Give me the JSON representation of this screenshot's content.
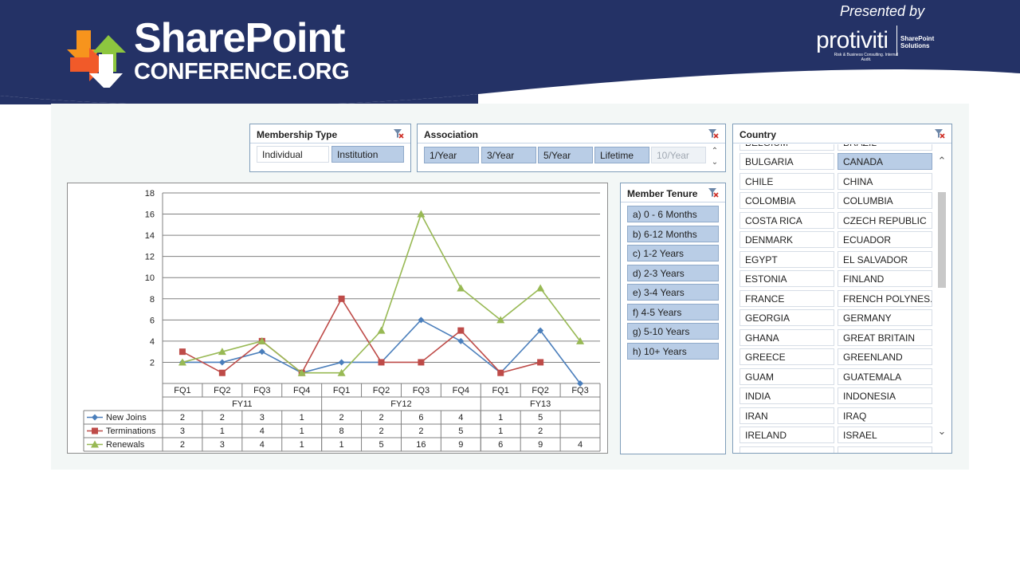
{
  "brand": {
    "line1": "SharePoint",
    "line2": "CONFERENCE.ORG",
    "presented_by": "Presented by",
    "sponsor": "protiviti",
    "sponsor_tagline": "Risk & Business Consulting. Internal Audit.",
    "sponsor_unit_line1": "SharePoint",
    "sponsor_unit_line2": "Solutions",
    "banner_color": "#243266"
  },
  "membership_type": {
    "title": "Membership Type",
    "items": [
      {
        "label": "Individual",
        "selected": false
      },
      {
        "label": "Institution",
        "selected": true
      }
    ]
  },
  "association": {
    "title": "Association",
    "items": [
      {
        "label": "1/Year",
        "state": "selected"
      },
      {
        "label": "3/Year",
        "state": "selected"
      },
      {
        "label": "5/Year",
        "state": "selected"
      },
      {
        "label": "Lifetime",
        "state": "selected"
      },
      {
        "label": "10/Year",
        "state": "nodata"
      }
    ]
  },
  "member_tenure": {
    "title": "Member Tenure",
    "items": [
      "a) 0 - 6 Months",
      "b) 6-12 Months",
      "c) 1-2 Years",
      "d) 2-3 Years",
      "e) 3-4 Years",
      "f) 4-5 Years",
      "g) 5-10 Years",
      "h) 10+ Years"
    ]
  },
  "country": {
    "title": "Country",
    "partial_top": [
      "BELGIUM",
      "BRAZIL"
    ],
    "rows": [
      [
        {
          "label": "BULGARIA",
          "selected": false
        },
        {
          "label": "CANADA",
          "selected": true
        }
      ],
      [
        {
          "label": "CHILE",
          "selected": false
        },
        {
          "label": "CHINA",
          "selected": false
        }
      ],
      [
        {
          "label": "COLOMBIA",
          "selected": false
        },
        {
          "label": "COLUMBIA",
          "selected": false
        }
      ],
      [
        {
          "label": "COSTA RICA",
          "selected": false
        },
        {
          "label": "CZECH REPUBLIC",
          "selected": false
        }
      ],
      [
        {
          "label": "DENMARK",
          "selected": false
        },
        {
          "label": "ECUADOR",
          "selected": false
        }
      ],
      [
        {
          "label": "EGYPT",
          "selected": false
        },
        {
          "label": "EL SALVADOR",
          "selected": false
        }
      ],
      [
        {
          "label": "ESTONIA",
          "selected": false
        },
        {
          "label": "FINLAND",
          "selected": false
        }
      ],
      [
        {
          "label": "FRANCE",
          "selected": false
        },
        {
          "label": "FRENCH POLYNES...",
          "selected": false
        }
      ],
      [
        {
          "label": "GEORGIA",
          "selected": false
        },
        {
          "label": "GERMANY",
          "selected": false
        }
      ],
      [
        {
          "label": "GHANA",
          "selected": false
        },
        {
          "label": "GREAT BRITAIN",
          "selected": false
        }
      ],
      [
        {
          "label": "GREECE",
          "selected": false
        },
        {
          "label": "GREENLAND",
          "selected": false
        }
      ],
      [
        {
          "label": "GUAM",
          "selected": false
        },
        {
          "label": "GUATEMALA",
          "selected": false
        }
      ],
      [
        {
          "label": "INDIA",
          "selected": false
        },
        {
          "label": "INDONESIA",
          "selected": false
        }
      ],
      [
        {
          "label": "IRAN",
          "selected": false
        },
        {
          "label": "IRAQ",
          "selected": false
        }
      ],
      [
        {
          "label": "IRELAND",
          "selected": false
        },
        {
          "label": "ISRAEL",
          "selected": false
        }
      ]
    ]
  },
  "chart_data": {
    "type": "line",
    "categories": [
      "FQ1",
      "FQ2",
      "FQ3",
      "FQ4",
      "FQ1",
      "FQ2",
      "FQ3",
      "FQ4",
      "FQ1",
      "FQ2",
      "FQ3"
    ],
    "groups": [
      {
        "label": "FY11",
        "span": 4
      },
      {
        "label": "FY12",
        "span": 4
      },
      {
        "label": "FY13",
        "span": 3
      }
    ],
    "ylim": [
      0,
      18
    ],
    "yticks": [
      2,
      4,
      6,
      8,
      10,
      12,
      14,
      16,
      18
    ],
    "grid": true,
    "series": [
      {
        "name": "New Joins",
        "color": "#4a7ebb",
        "marker": "diamond",
        "values": [
          2,
          2,
          3,
          1,
          2,
          2,
          6,
          4,
          1,
          5,
          null
        ],
        "line_values": [
          2,
          2,
          3,
          1,
          2,
          2,
          6,
          4,
          1,
          5,
          0
        ]
      },
      {
        "name": "Terminations",
        "color": "#be4b48",
        "marker": "square",
        "values": [
          3,
          1,
          4,
          1,
          8,
          2,
          2,
          5,
          1,
          2,
          null
        ],
        "line_values": [
          3,
          1,
          4,
          1,
          8,
          2,
          2,
          5,
          1,
          2,
          null
        ]
      },
      {
        "name": "Renewals",
        "color": "#98b954",
        "marker": "triangle",
        "values": [
          2,
          3,
          4,
          1,
          1,
          5,
          16,
          9,
          6,
          9,
          4
        ],
        "line_values": [
          2,
          3,
          4,
          1,
          1,
          5,
          16,
          9,
          6,
          9,
          4
        ]
      }
    ],
    "legend": "data-table-left"
  }
}
